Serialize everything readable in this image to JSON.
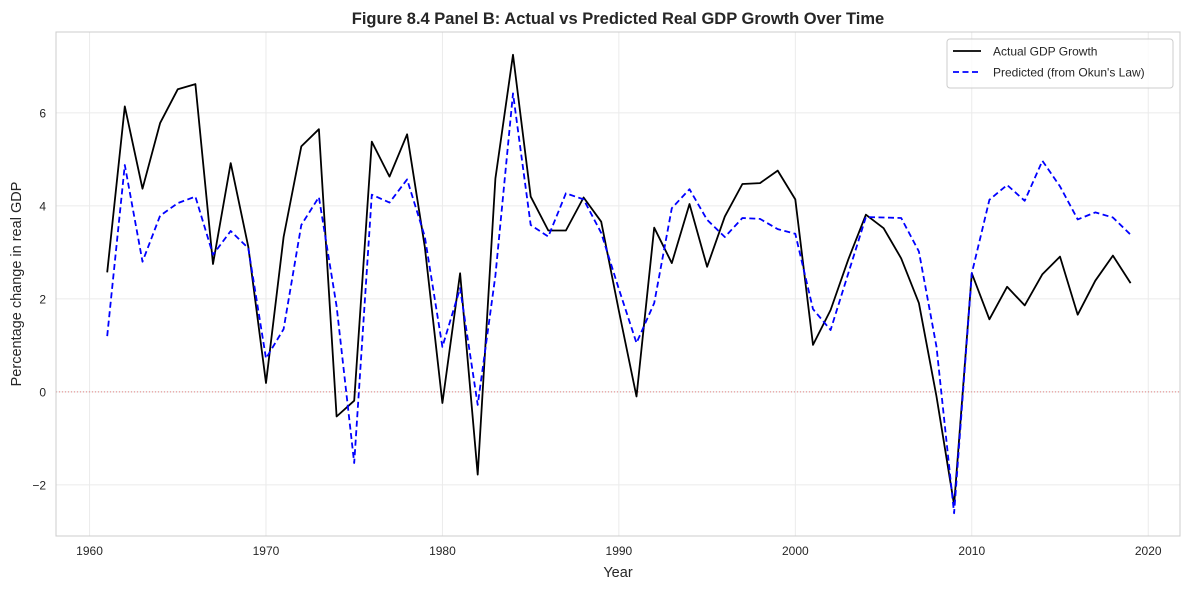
{
  "chart_data": {
    "type": "line",
    "title": "Figure 8.4 Panel B: Actual vs Predicted Real GDP Growth Over Time",
    "xlabel": "Year",
    "ylabel": "Percentage change in real GDP",
    "xlim": [
      1958.1,
      2021.8
    ],
    "ylim": [
      -3.1,
      7.74
    ],
    "xticks": [
      1960,
      1970,
      1980,
      1990,
      2000,
      2010,
      2020
    ],
    "xtick_labels": [
      "1960",
      "1970",
      "1980",
      "1990",
      "2000",
      "2010",
      "2020"
    ],
    "yticks": [
      -2,
      0,
      2,
      4,
      6
    ],
    "ytick_labels": [
      "−2",
      "0",
      "2",
      "4",
      "6"
    ],
    "grid": true,
    "legend_position": "top-right",
    "reference_line": {
      "y": 0,
      "color": "#e06666",
      "style": "dotted"
    },
    "x": [
      1961,
      1962,
      1963,
      1964,
      1965,
      1966,
      1967,
      1968,
      1969,
      1970,
      1971,
      1972,
      1973,
      1974,
      1975,
      1976,
      1977,
      1978,
      1979,
      1980,
      1981,
      1982,
      1983,
      1984,
      1985,
      1986,
      1987,
      1988,
      1989,
      1990,
      1991,
      1992,
      1993,
      1994,
      1995,
      1996,
      1997,
      1998,
      1999,
      2000,
      2001,
      2002,
      2003,
      2004,
      2005,
      2006,
      2007,
      2008,
      2009,
      2010,
      2011,
      2012,
      2013,
      2014,
      2015,
      2016,
      2017,
      2018,
      2019
    ],
    "series": [
      {
        "name": "Actual GDP Growth",
        "color": "#000000",
        "style": "solid",
        "values": [
          2.57,
          6.14,
          4.37,
          5.78,
          6.51,
          6.62,
          2.75,
          4.92,
          3.12,
          0.19,
          3.33,
          5.28,
          5.65,
          -0.53,
          -0.19,
          5.38,
          4.63,
          5.54,
          3.12,
          -0.24,
          2.55,
          -1.78,
          4.59,
          7.25,
          4.2,
          3.47,
          3.47,
          4.18,
          3.66,
          1.74,
          -0.1,
          3.53,
          2.77,
          4.04,
          2.69,
          3.77,
          4.47,
          4.49,
          4.76,
          4.14,
          1.01,
          1.76,
          2.85,
          3.81,
          3.52,
          2.87,
          1.91,
          -0.1,
          -2.43,
          2.55,
          1.56,
          2.26,
          1.86,
          2.53,
          2.91,
          1.66,
          2.39,
          2.93,
          2.34
        ]
      },
      {
        "name": "Predicted (from Okun's Law)",
        "color": "#0000ff",
        "style": "dashed",
        "values": [
          1.2,
          4.88,
          2.8,
          3.79,
          4.06,
          4.2,
          2.95,
          3.46,
          3.09,
          0.72,
          1.35,
          3.59,
          4.19,
          1.84,
          -1.53,
          4.24,
          4.07,
          4.57,
          3.34,
          0.97,
          2.23,
          -0.28,
          2.5,
          6.42,
          3.59,
          3.34,
          4.27,
          4.14,
          3.42,
          2.21,
          1.05,
          1.91,
          3.95,
          4.36,
          3.7,
          3.33,
          3.74,
          3.72,
          3.5,
          3.4,
          1.78,
          1.33,
          2.55,
          3.76,
          3.75,
          3.74,
          3.02,
          0.97,
          -2.61,
          2.55,
          4.13,
          4.45,
          4.11,
          4.97,
          4.42,
          3.71,
          3.86,
          3.75,
          3.38
        ]
      }
    ]
  }
}
